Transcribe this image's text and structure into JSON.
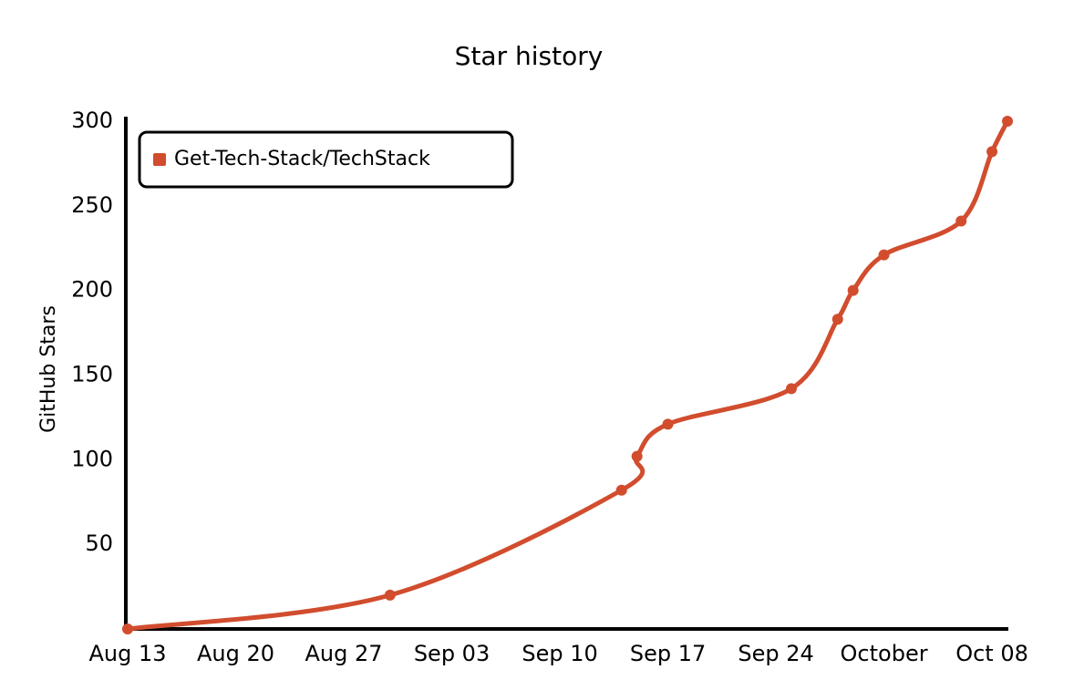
{
  "chart_data": {
    "type": "line",
    "title": "Star history",
    "y_label": "GitHub Stars",
    "series": [
      {
        "name": "Get-Tech-Stack/TechStack",
        "color": "#d14d2e",
        "x": [
          "Aug 13",
          "Aug 30",
          "Sep 14",
          "Sep 15",
          "Sep 17",
          "Sep 25",
          "Sep 28",
          "Sep 29",
          "Oct 01",
          "Oct 06",
          "Oct 08",
          "Oct 09"
        ],
        "values": [
          0,
          20,
          82,
          102,
          121,
          142,
          183,
          200,
          221,
          241,
          282,
          300
        ]
      }
    ],
    "xlim": [
      "Aug 13",
      "Oct 09"
    ],
    "xticks": [
      "Aug 13",
      "Aug 20",
      "Aug 27",
      "Sep 03",
      "Sep 10",
      "Sep 17",
      "Sep 24",
      {
        "value": "Oct 01",
        "label": "October"
      },
      "Oct 08"
    ],
    "ylim": [
      0,
      300
    ],
    "yticks": [
      50,
      100,
      150,
      200,
      250,
      300
    ],
    "grid": false,
    "legend": "top-left"
  }
}
